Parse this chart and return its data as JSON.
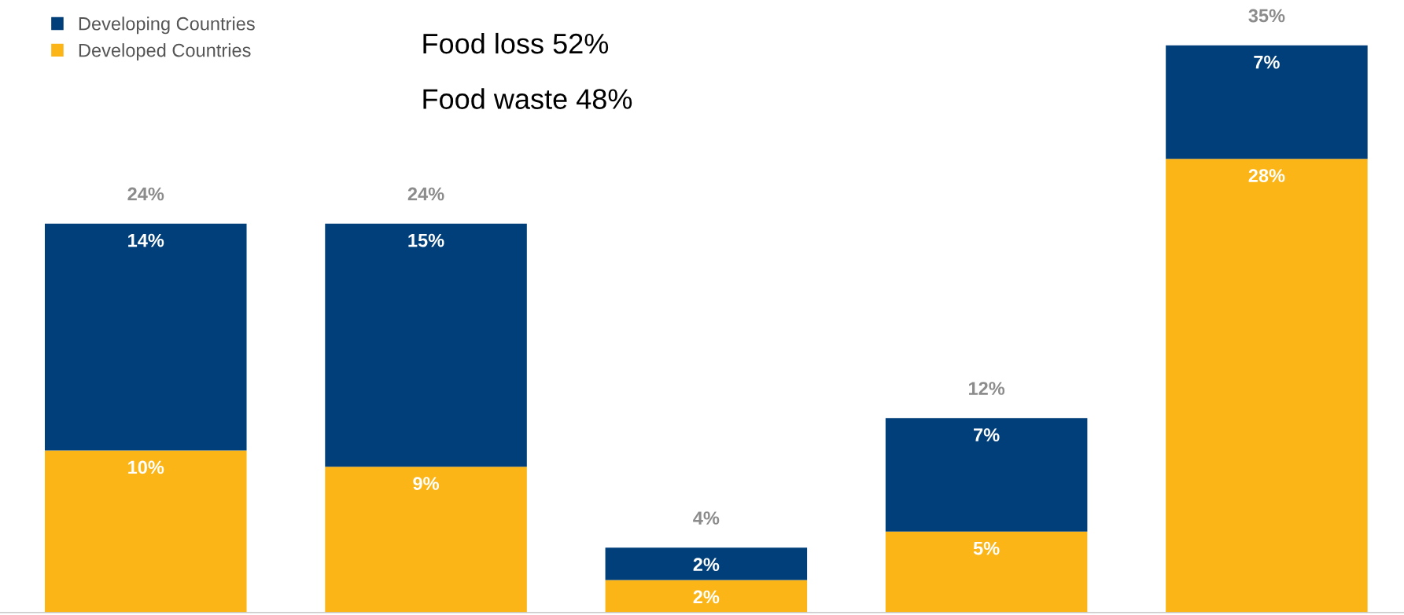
{
  "chart_data": {
    "type": "bar",
    "stacked": true,
    "categories": [
      null,
      null,
      null,
      null,
      null
    ],
    "series": [
      {
        "name": "Developed Countries",
        "color": "#fbb516",
        "values": [
          10,
          9,
          2,
          5,
          28
        ],
        "value_labels": [
          "10%",
          "9%",
          "2%",
          "5%",
          "28%"
        ]
      },
      {
        "name": "Developing Countries",
        "color": "#003f7a",
        "values": [
          14,
          15,
          2,
          7,
          7
        ],
        "value_labels": [
          "14%",
          "15%",
          "2%",
          "7%",
          "7%"
        ]
      }
    ],
    "totals": [
      "24%",
      "24%",
      "4%",
      "12%",
      "35%"
    ],
    "legend": "top left",
    "grid": false,
    "annotations": [
      "Food loss 52%",
      "Food waste 48%"
    ]
  }
}
